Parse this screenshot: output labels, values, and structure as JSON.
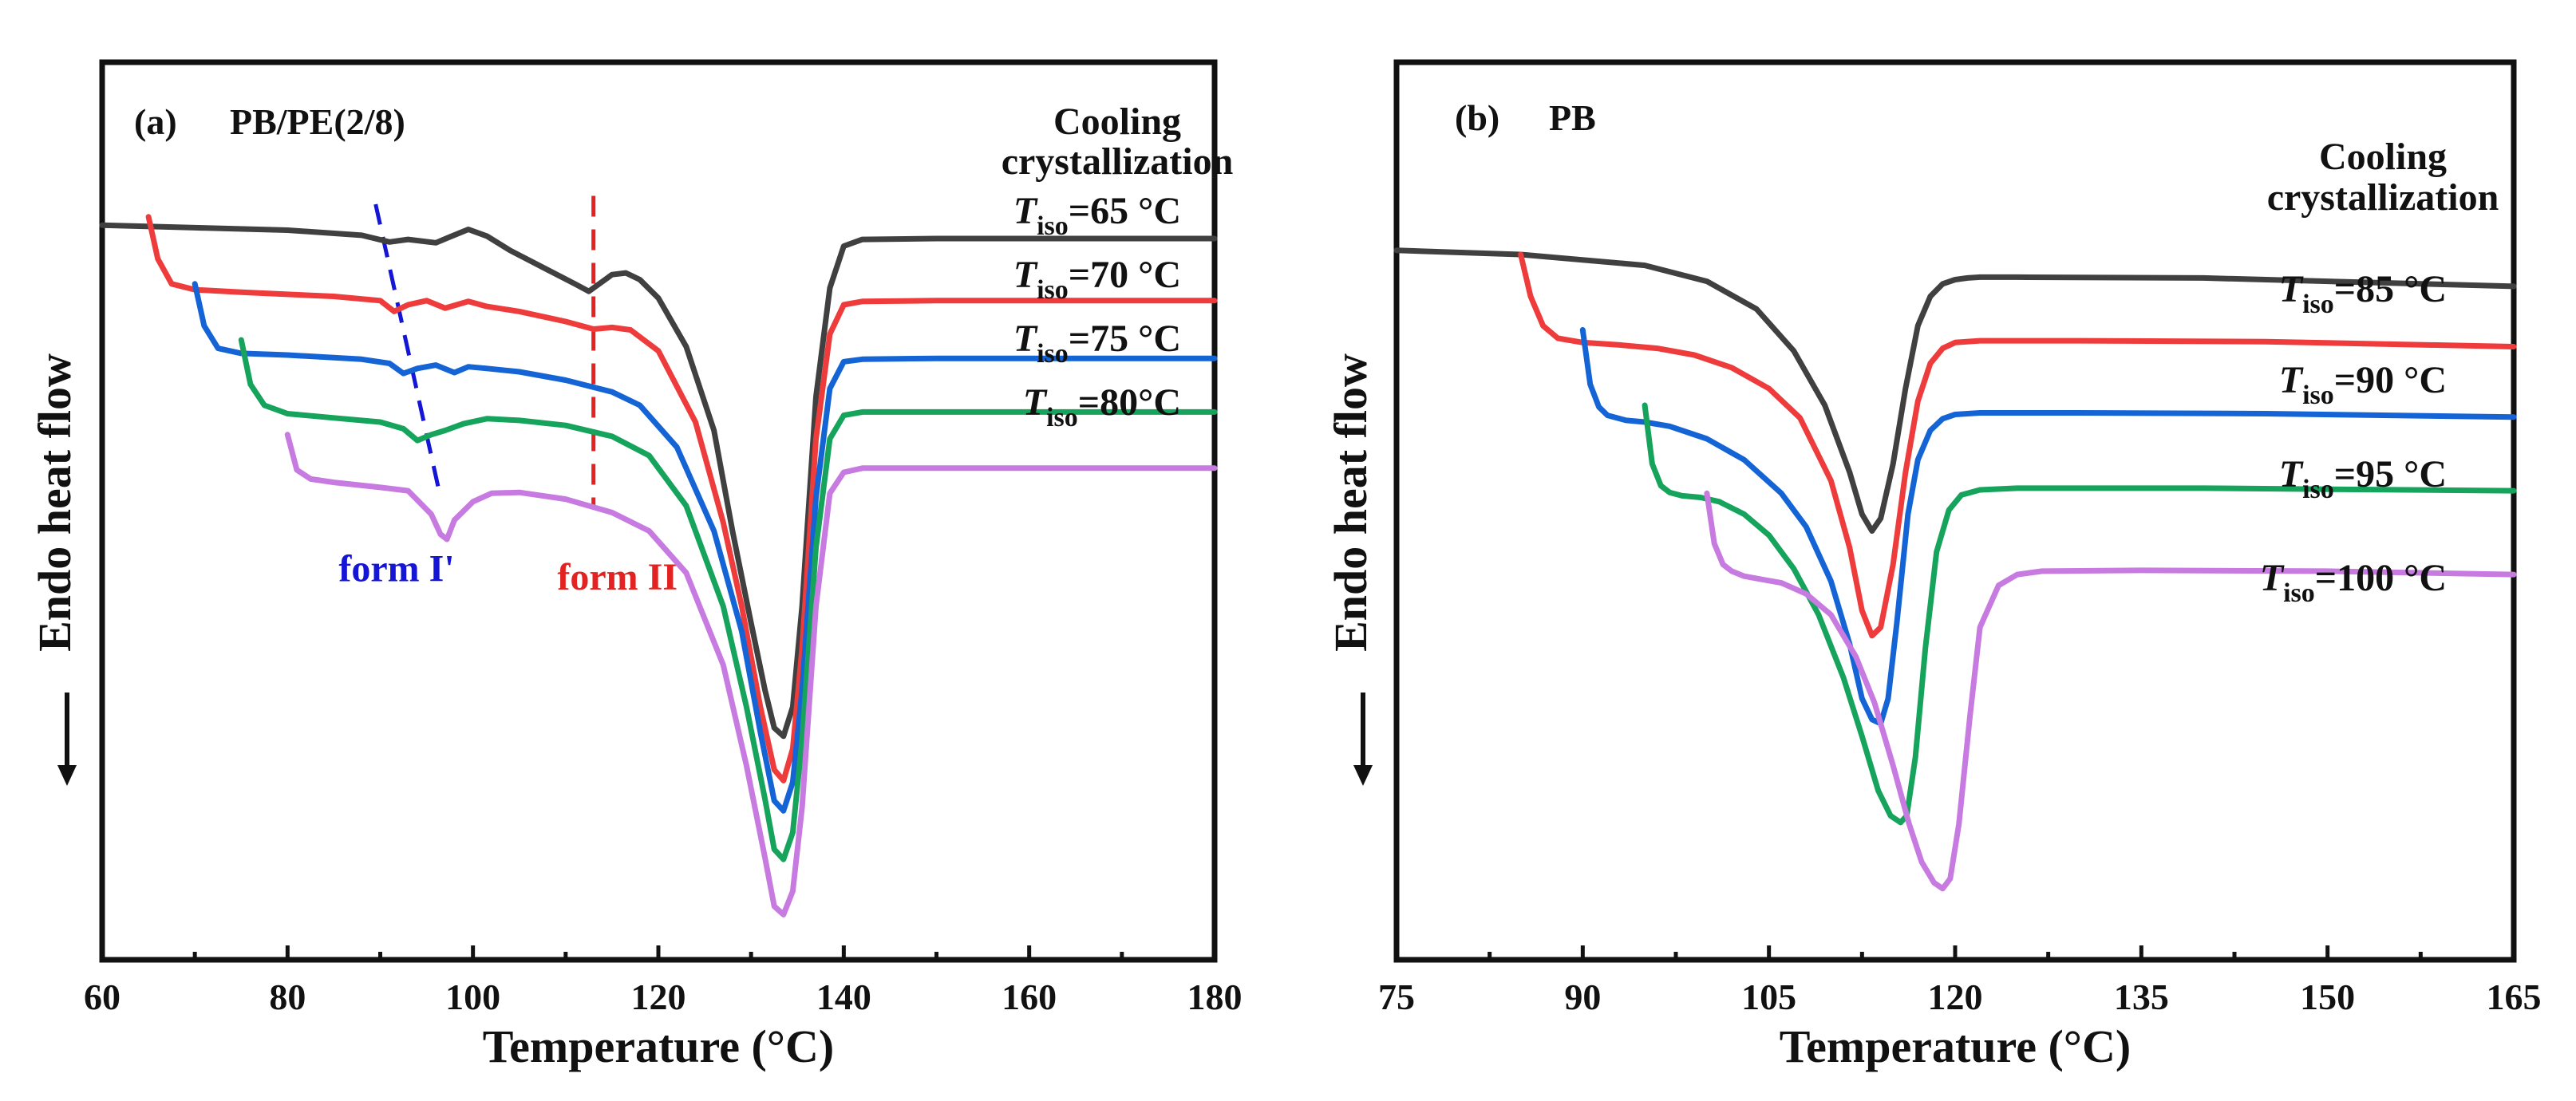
{
  "chart_data": [
    {
      "type": "line",
      "panel": "(a)",
      "title": "PB/PE(2/8)",
      "xlabel": "Temperature (°C)",
      "ylabel": "Endo heat flow",
      "xlim": [
        60,
        180
      ],
      "xticks": [
        "60",
        "80",
        "100",
        "120",
        "140",
        "160",
        "180"
      ],
      "ylim": [
        0,
        100
      ],
      "grid": false,
      "annotations": [
        {
          "text": "form I'",
          "color": "#1515d6",
          "line": [
            [
              89.5,
              88
            ],
            [
              96.5,
              53
            ]
          ]
        },
        {
          "text": "form II",
          "color": "#e32222",
          "line": [
            [
              113,
              89
            ],
            [
              113,
              52
            ]
          ]
        }
      ],
      "series": [
        {
          "name": "Cooling crystallization",
          "label_main": "Cooling",
          "label_line2": "crystallization",
          "color": "#404040",
          "x": [
            60,
            70,
            80,
            88,
            91,
            93,
            96,
            97.5,
            99.5,
            101.5,
            104,
            108,
            111,
            112.5,
            113.5,
            115,
            116.5,
            118,
            120,
            123,
            126,
            128,
            130,
            131.5,
            132.5,
            133.5,
            134.5,
            135.5,
            137,
            138.5,
            140,
            142,
            150,
            165,
            180
          ],
          "y": [
            85.5,
            85.2,
            84.9,
            84.3,
            83.5,
            83.8,
            83.4,
            84.1,
            85.0,
            84.2,
            82.5,
            80.2,
            78.5,
            77.6,
            78.4,
            79.6,
            79.8,
            79.0,
            76.8,
            71,
            61,
            49,
            38,
            30,
            25.5,
            24.5,
            28,
            40,
            65,
            78,
            83,
            83.8,
            83.9,
            83.9,
            83.9
          ]
        },
        {
          "name": "Tiso=65 °C",
          "label_main": "T",
          "label_sub": "iso",
          "label_rest": "=65 °C",
          "color": "#ee3b3b",
          "x": [
            65,
            66,
            67.5,
            70,
            75,
            85,
            90,
            91.5,
            93,
            95,
            97,
            99.5,
            101.5,
            105,
            110,
            113,
            115,
            117,
            120,
            124,
            127,
            129,
            131,
            132.5,
            133.5,
            134.5,
            135.5,
            137,
            138.5,
            140,
            142,
            150,
            165,
            180
          ],
          "y": [
            86.5,
            81.5,
            78.5,
            77.8,
            77.5,
            77.0,
            76.5,
            75.2,
            76.0,
            76.5,
            75.6,
            76.4,
            75.8,
            75.2,
            74.0,
            73.1,
            73.3,
            73.0,
            70.5,
            62,
            50,
            40,
            28,
            20.5,
            19.2,
            23,
            35,
            60,
            72.5,
            76.0,
            76.4,
            76.5,
            76.5,
            76.5
          ]
        },
        {
          "name": "Tiso=70 °C",
          "label_main": "T",
          "label_sub": "iso",
          "label_rest": "=70 °C",
          "color": "#1464d6",
          "x": [
            70,
            71,
            72.5,
            75,
            80,
            88,
            91,
            92.5,
            94,
            96,
            98,
            99.5,
            101.5,
            105,
            110,
            115,
            118,
            122,
            126,
            129,
            131,
            132.5,
            133.5,
            134.5,
            135.5,
            137,
            138.5,
            140,
            142,
            150,
            165,
            180
          ],
          "y": [
            78.5,
            73.5,
            70.8,
            70.2,
            70.0,
            69.5,
            69.0,
            67.8,
            68.4,
            68.8,
            67.9,
            68.6,
            68.4,
            68.0,
            67.0,
            65.6,
            64.0,
            59,
            49,
            37,
            25,
            16.8,
            15.6,
            19,
            30,
            53,
            66,
            69.2,
            69.5,
            69.6,
            69.6,
            69.6
          ]
        },
        {
          "name": "Tiso=75 °C",
          "label_main": "T",
          "label_sub": "iso",
          "label_rest": "=75 °C",
          "color": "#16a35c",
          "x": [
            75,
            76,
            77.5,
            80,
            85,
            90,
            92.5,
            94,
            95.5,
            97,
            99,
            101.5,
            105,
            110,
            115,
            119,
            123,
            127,
            129.5,
            131.5,
            132.5,
            133.5,
            134.5,
            135.5,
            137,
            138.5,
            140,
            142,
            150,
            165,
            180
          ],
          "y": [
            71.8,
            66.5,
            64.0,
            63.0,
            62.5,
            62.0,
            61.2,
            59.8,
            60.5,
            61.0,
            61.8,
            62.4,
            62.2,
            61.6,
            60.3,
            58.0,
            52,
            40,
            28,
            17,
            11,
            9.8,
            13,
            24,
            47,
            60,
            62.8,
            63.2,
            63.2,
            63.2,
            63.2
          ]
        },
        {
          "name": "Tiso=80°C",
          "label_main": "T",
          "label_sub": "iso",
          "label_rest": "=80°C",
          "color": "#c77ae0",
          "x": [
            80,
            81,
            82.5,
            85,
            90,
            93,
            95.5,
            96.5,
            97.2,
            98,
            100,
            102,
            105,
            110,
            115,
            119,
            123,
            127,
            129.5,
            131.5,
            132.5,
            133.5,
            134.5,
            135.5,
            137,
            138.5,
            140,
            142,
            150,
            165,
            180
          ],
          "y": [
            60.5,
            56.3,
            55.2,
            54.8,
            54.2,
            53.8,
            51.0,
            48.6,
            48.0,
            50.3,
            52.5,
            53.5,
            53.6,
            52.8,
            51.2,
            49.0,
            44,
            33,
            21,
            10,
            4.2,
            3.2,
            6,
            16,
            40,
            53.5,
            56.0,
            56.5,
            56.5,
            56.5,
            56.5
          ]
        }
      ]
    },
    {
      "type": "line",
      "panel": "(b)",
      "title": "PB",
      "xlabel": "Temperature (°C)",
      "ylabel": "Endo heat flow",
      "xlim": [
        75,
        165
      ],
      "xticks": [
        "75",
        "90",
        "105",
        "120",
        "135",
        "150",
        "165"
      ],
      "ylim": [
        0,
        100
      ],
      "grid": false,
      "series": [
        {
          "name": "Cooling crystallization",
          "label_main": "Cooling",
          "label_line2": "crystallization",
          "color": "#404040",
          "x": [
            75,
            85,
            95,
            100,
            104,
            107,
            109.5,
            111.5,
            112.5,
            113.3,
            114,
            115,
            116,
            117,
            118,
            119,
            120,
            121,
            122,
            125,
            140,
            165
          ],
          "y": [
            82.5,
            82.0,
            80.7,
            78.8,
            75.5,
            70.5,
            64.0,
            56.0,
            51.0,
            49.0,
            50.5,
            57.0,
            66.0,
            73.5,
            77.0,
            78.5,
            79.0,
            79.2,
            79.3,
            79.3,
            79.2,
            78.2
          ]
        },
        {
          "name": "Tiso=85 °C",
          "label_main": "T",
          "label_sub": "iso",
          "label_rest": "=85 °C",
          "color": "#ee3b3b",
          "x": [
            85,
            85.8,
            86.8,
            88,
            90,
            93,
            96,
            99,
            102,
            105,
            107.5,
            110,
            111.5,
            112.5,
            113.3,
            114,
            115,
            116,
            117,
            118,
            119,
            120,
            122,
            130,
            145,
            165
          ],
          "y": [
            82.0,
            77.0,
            73.5,
            72.0,
            71.5,
            71.2,
            70.8,
            70.0,
            68.5,
            66.0,
            62.5,
            55.0,
            47.0,
            39.5,
            36.5,
            37.5,
            45.0,
            56.0,
            64.5,
            69.0,
            70.8,
            71.5,
            71.7,
            71.7,
            71.6,
            71.0
          ]
        },
        {
          "name": "Tiso=90 °C",
          "label_main": "T",
          "label_sub": "iso",
          "label_rest": "=90 °C",
          "color": "#1464d6",
          "x": [
            90,
            90.6,
            91.3,
            92,
            93.5,
            95,
            97,
            100,
            103,
            106,
            108,
            110,
            111.5,
            112.5,
            113.3,
            114,
            114.6,
            115.3,
            116.2,
            117,
            118,
            119,
            120,
            122,
            130,
            145,
            165
          ],
          "y": [
            73.0,
            66.5,
            63.8,
            62.8,
            62.2,
            62.0,
            61.5,
            60.0,
            57.5,
            53.5,
            49.5,
            43.0,
            35.5,
            29.0,
            26.5,
            26.0,
            29.0,
            38.0,
            51.0,
            57.5,
            61.0,
            62.4,
            62.9,
            63.1,
            63.1,
            63.0,
            62.6
          ]
        },
        {
          "name": "Tiso=95 °C",
          "label_main": "T",
          "label_sub": "iso",
          "label_rest": "=95 °C",
          "color": "#16a35c",
          "x": [
            95,
            95.6,
            96.3,
            97,
            98,
            99.5,
            101,
            103,
            105,
            107,
            109,
            111,
            112.5,
            113.8,
            114.8,
            115.6,
            116.1,
            116.8,
            117.6,
            118.5,
            119.5,
            120.5,
            122,
            125,
            140,
            165
          ],
          "y": [
            64.0,
            57.0,
            54.4,
            53.6,
            53.2,
            53.0,
            52.5,
            51.0,
            48.5,
            44.5,
            39.0,
            31.5,
            24.5,
            18.0,
            15.0,
            14.2,
            15.0,
            22.0,
            35.0,
            46.5,
            51.5,
            53.3,
            53.9,
            54.1,
            54.1,
            53.8
          ]
        },
        {
          "name": "Tiso=100 °C",
          "label_main": "T",
          "label_sub": "iso",
          "label_rest": "=100 °C",
          "color": "#c77ae0",
          "x": [
            100,
            100.6,
            101.3,
            102,
            103,
            104.5,
            106,
            108,
            110,
            112,
            113.5,
            115,
            116.3,
            117.3,
            118.3,
            119,
            119.6,
            120.3,
            121.2,
            122,
            123.5,
            125,
            127,
            135,
            150,
            165
          ],
          "y": [
            53.5,
            47.5,
            45.0,
            44.2,
            43.6,
            43.2,
            42.8,
            41.5,
            39.0,
            34.0,
            28.5,
            21.0,
            14.0,
            9.5,
            7.0,
            6.3,
            7.5,
            14.0,
            27.0,
            37.5,
            42.5,
            43.8,
            44.2,
            44.3,
            44.2,
            43.8
          ]
        }
      ]
    }
  ]
}
